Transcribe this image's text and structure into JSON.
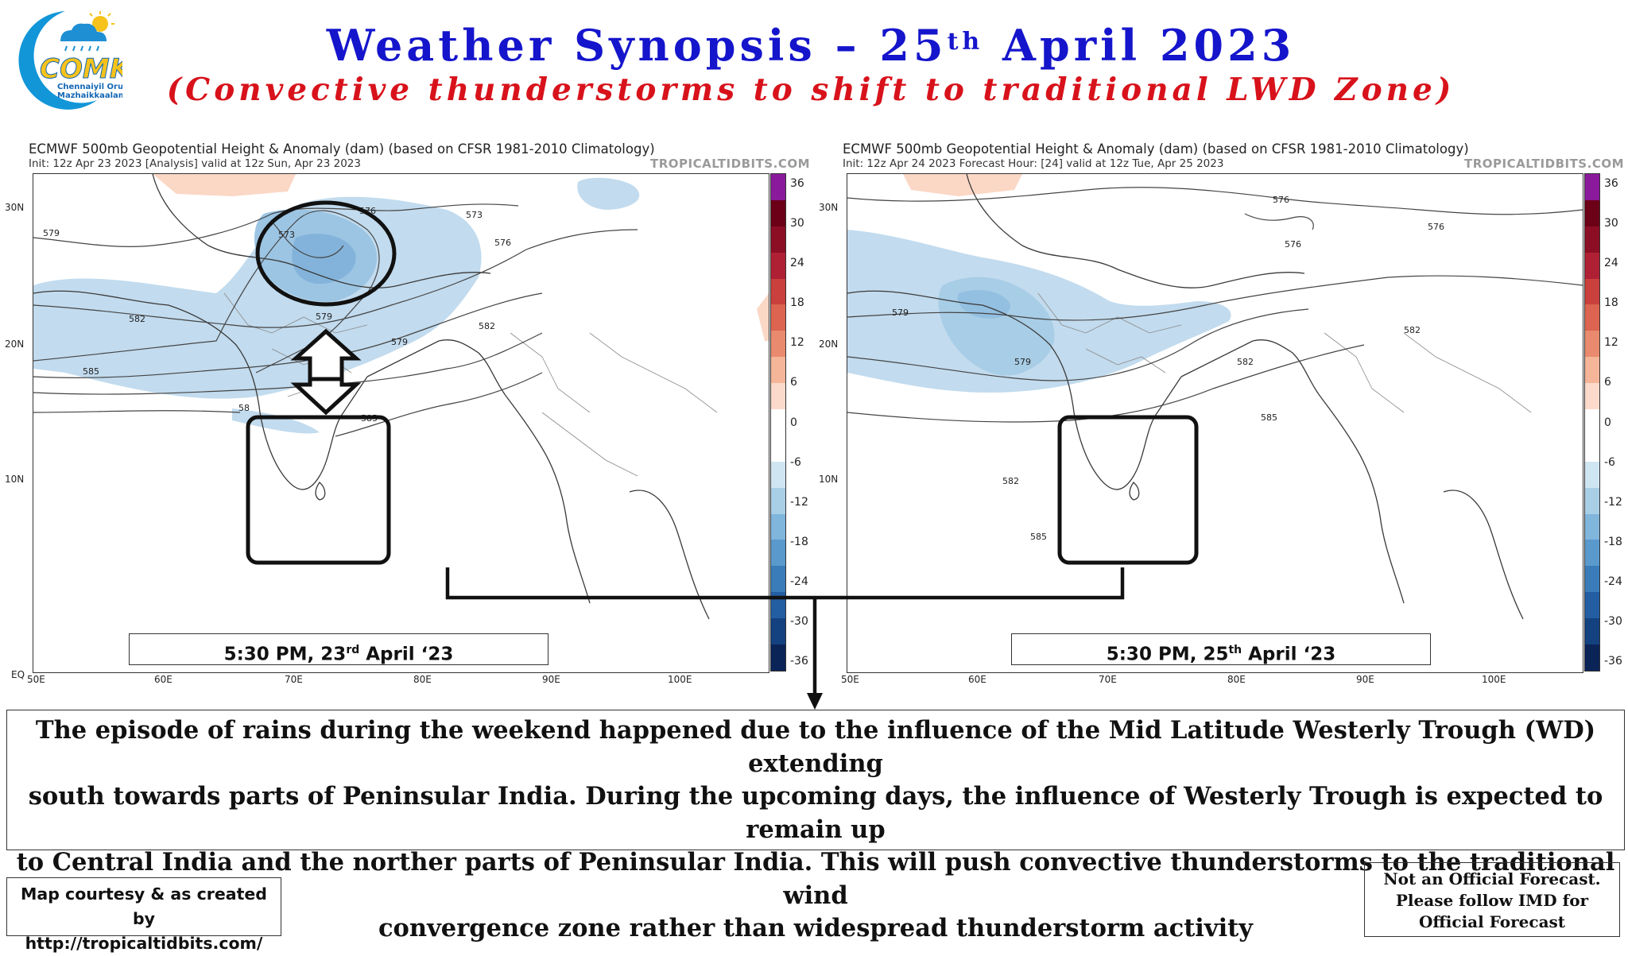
{
  "logo": {
    "line1": "Chennaiyil Oru",
    "line2": "Mazhaikkaalam",
    "mark": "COMK",
    "icon": "cloud-sun-rain-icon"
  },
  "title": {
    "prefix": "Weather Synopsis – 25",
    "sup": "th",
    "suffix": " April 2023"
  },
  "subtitle": "(Convective thunderstorms to shift to traditional LWD Zone)",
  "maps": [
    {
      "header": "ECMWF 500mb Geopotential Height & Anomaly (dam) (based on CFSR 1981-2010 Climatology)",
      "subheader": "Init: 12z Apr 23 2023   [Analysis]   valid at 12z Sun, Apr 23 2023",
      "watermark": "TROPICALTIDBITS.COM",
      "date_label": {
        "prefix": "5:30 PM, 23",
        "sup": "rd",
        "suffix": " April ‘23"
      },
      "contours": [
        "573",
        "576",
        "576",
        "579",
        "579",
        "582",
        "582",
        "582",
        "585",
        "585",
        "58"
      ]
    },
    {
      "header": "ECMWF 500mb Geopotential Height & Anomaly (dam) (based on CFSR 1981-2010 Climatology)",
      "subheader": "Init: 12z Apr 24 2023   Forecast Hour: [24]   valid at 12z Tue, Apr 25 2023",
      "watermark": "TROPICALTIDBITS.COM",
      "date_label": {
        "prefix": "5:30 PM, 25",
        "sup": "th",
        "suffix": " April ‘23"
      },
      "contours": [
        "576",
        "576",
        "576",
        "579",
        "579",
        "582",
        "582",
        "582",
        "585",
        "585"
      ]
    }
  ],
  "axes": {
    "lat_labels": [
      "30N",
      "20N",
      "10N",
      "EQ"
    ],
    "lon_labels": [
      "50E",
      "60E",
      "70E",
      "80E",
      "90E",
      "100E"
    ]
  },
  "colorbar": {
    "labels": [
      "36",
      "30",
      "24",
      "18",
      "12",
      "6",
      "0",
      "-6",
      "-12",
      "-18",
      "-24",
      "-30",
      "-36"
    ],
    "colors": [
      "#8a1a9b",
      "#6b0017",
      "#8c0e24",
      "#b02034",
      "#c9403c",
      "#dc6450",
      "#e98a6e",
      "#f4b598",
      "#fbdacb",
      "#ffffff",
      "#ffffff",
      "#d0e5f2",
      "#a9cfe7",
      "#80b5dc",
      "#5a99cc",
      "#3a7cba",
      "#235ea3",
      "#14417f",
      "#0b2458"
    ]
  },
  "summary": [
    "The episode of rains during the weekend happened due to the influence of the Mid Latitude Westerly Trough (WD) extending",
    "south towards parts of Peninsular India. During the upcoming days, the influence of Westerly Trough is expected to remain up",
    "to Central India and the norther parts of Peninsular India.  This will push convective thunderstorms to the traditional wind",
    "convergence zone rather than widespread thunderstorm activity"
  ],
  "courtesy": [
    "Map courtesy & as created by",
    "http://tropicaltidbits.com/"
  ],
  "disclaimer": [
    "Not an Official Forecast.",
    "Please follow IMD for",
    "Official Forecast"
  ]
}
